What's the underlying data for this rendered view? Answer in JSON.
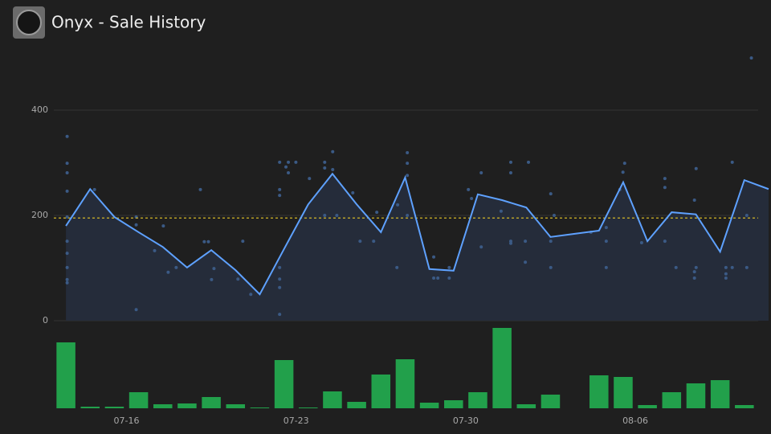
{
  "header": {
    "title": "Onyx - Sale History"
  },
  "chart_data": {
    "type": "line",
    "xlim": [
      13,
      42.6
    ],
    "xticks": [
      {
        "value": 16,
        "label": "07-16"
      },
      {
        "value": 23,
        "label": "07-23"
      },
      {
        "value": 30,
        "label": "07-30"
      },
      {
        "value": 37,
        "label": "08-06"
      }
    ],
    "ylim": [
      0,
      520
    ],
    "yticks": [
      0,
      200,
      400
    ],
    "y2lim": [
      0,
      100
    ],
    "grid": true,
    "reference_line": {
      "value": 195,
      "color": "#d4b728"
    },
    "series": [
      {
        "type": "scatter",
        "color": "#3b5a85",
        "x": [
          13.55,
          13.55,
          13.55,
          13.55,
          13.55,
          13.55,
          13.55,
          13.55,
          13.55,
          13.55,
          14.68,
          16.4,
          16.4,
          16.4,
          17.16,
          17.52,
          17.72,
          18.05,
          19.05,
          19.21,
          19.38,
          19.51,
          19.61,
          20.6,
          20.8,
          21.13,
          22.32,
          22.32,
          22.32,
          22.32,
          22.32,
          22.32,
          22.32,
          22.58,
          22.68,
          22.68,
          22.99,
          23.55,
          24.18,
          24.18,
          24.51,
          24.51,
          24.18,
          24.68,
          25.34,
          25.64,
          26.33,
          26.2,
          27.16,
          27.19,
          27.59,
          27.59,
          27.59,
          27.59,
          28.68,
          28.68,
          28.85,
          29.32,
          29.32,
          30.11,
          30.24,
          30.64,
          30.64,
          31.46,
          31.86,
          31.86,
          31.86,
          31.86,
          32.46,
          32.59,
          32.46,
          33.51,
          33.51,
          33.51,
          33.65,
          35.17,
          35.8,
          35.8,
          35.8,
          36.56,
          36.49,
          36.36,
          37.26,
          38.22,
          38.22,
          38.22,
          38.68,
          39.44,
          39.51,
          39.51,
          39.44,
          39.44,
          40.74,
          40.74,
          40.74,
          41.0,
          41.0,
          41.6,
          41.6,
          41.79
        ],
        "values": [
          350,
          299,
          281,
          246,
          151,
          101,
          78,
          72,
          197,
          128,
          249,
          197,
          21,
          182,
          133,
          180,
          92,
          101,
          249,
          150,
          150,
          78,
          99,
          79,
          151,
          50,
          301,
          249,
          238,
          101,
          79,
          63,
          12,
          292,
          281,
          301,
          301,
          270,
          301,
          290,
          321,
          287,
          200,
          200,
          243,
          151,
          206,
          151,
          101,
          220,
          319,
          299,
          276,
          200,
          121,
          81,
          81,
          101,
          81,
          249,
          232,
          281,
          140,
          208,
          301,
          281,
          151,
          147,
          151,
          301,
          111,
          241,
          151,
          101,
          200,
          168,
          177,
          151,
          101,
          299,
          282,
          249,
          148,
          270,
          253,
          151,
          101,
          229,
          289,
          101,
          93,
          81,
          101,
          89,
          81,
          101,
          301,
          101,
          200,
          499
        ]
      },
      {
        "type": "area-line",
        "color": "#5ea1ff",
        "fill": "#252c3a",
        "x": [
          13.5,
          14.5,
          15.5,
          16.5,
          17.5,
          18.5,
          19.5,
          20.5,
          21.5,
          22.5,
          23.5,
          24.5,
          25.5,
          26.5,
          27.5,
          28.5,
          29.5,
          30.5,
          31.5,
          32.5,
          33.5,
          34.5,
          35.5,
          36.5,
          37.5,
          38.5,
          39.5,
          40.5,
          41.5,
          42.5
        ],
        "values": [
          180,
          250,
          197,
          168,
          140,
          101,
          134,
          96,
          50,
          136,
          221,
          279,
          221,
          168,
          272,
          98,
          95,
          240,
          229,
          215,
          159,
          165,
          171,
          263,
          151,
          206,
          202,
          131,
          267,
          250
        ]
      },
      {
        "type": "bar",
        "axis": "y2",
        "color": "#22a04b",
        "x": [
          13.5,
          14.5,
          15.5,
          16.5,
          17.5,
          18.5,
          19.5,
          20.5,
          21.5,
          22.5,
          23.5,
          24.5,
          25.5,
          26.5,
          27.5,
          28.5,
          29.5,
          30.5,
          31.5,
          32.5,
          33.5,
          34.5,
          35.5,
          36.5,
          37.5,
          38.5,
          39.5,
          40.5,
          41.5
        ],
        "values": [
          82,
          2,
          2,
          20,
          5,
          6,
          14,
          5,
          1,
          60,
          1,
          21,
          8,
          42,
          61,
          7,
          10,
          20,
          100,
          5,
          17,
          null,
          41,
          39,
          4,
          20,
          31,
          35,
          4
        ]
      }
    ]
  }
}
